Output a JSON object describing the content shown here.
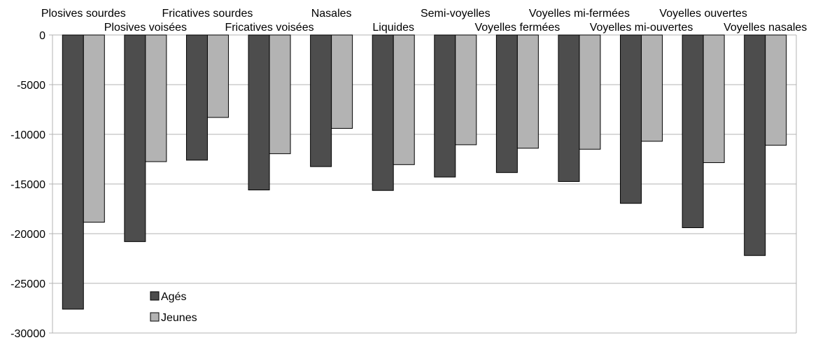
{
  "chart_data": {
    "type": "bar",
    "categories": [
      "Plosives sourdes",
      "Plosives voisées",
      "Fricatives sourdes",
      "Fricatives voisées",
      "Nasales",
      "Liquides",
      "Semi-voyelles",
      "Voyelles fermées",
      "Voyelles mi-fermées",
      "Voyelles mi-ouvertes",
      "Voyelles ouvertes",
      "Voyelles nasales"
    ],
    "series": [
      {
        "name": "Agés",
        "color": "#4d4d4d",
        "values": [
          -27600,
          -20800,
          -12600,
          -15600,
          -13250,
          -15650,
          -14300,
          -13850,
          -14750,
          -16950,
          -19400,
          -22200
        ]
      },
      {
        "name": "Jeunes",
        "color": "#b3b3b3",
        "values": [
          -18850,
          -12750,
          -8300,
          -11950,
          -9400,
          -13050,
          -11050,
          -11400,
          -11500,
          -10700,
          -12850,
          -11100
        ]
      }
    ],
    "ylim": [
      -30000,
      0
    ],
    "yticks": [
      0,
      -5000,
      -10000,
      -15000,
      -20000,
      -25000,
      -30000
    ],
    "ytick_labels": [
      "0",
      "-5000",
      "-10000",
      "-15000",
      "-20000",
      "-25000",
      "-30000"
    ],
    "grid": true,
    "legend_position": "lower-left"
  }
}
